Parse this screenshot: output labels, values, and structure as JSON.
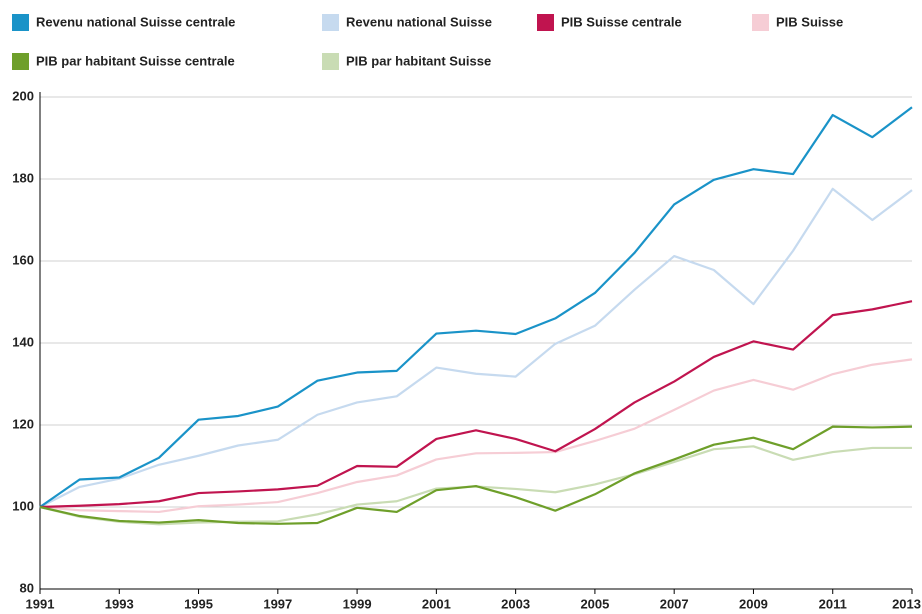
{
  "chart_data": {
    "type": "line",
    "x": [
      1991,
      1992,
      1993,
      1994,
      1995,
      1996,
      1997,
      1998,
      1999,
      2000,
      2001,
      2002,
      2003,
      2004,
      2005,
      2006,
      2007,
      2008,
      2009,
      2010,
      2011,
      2012,
      2013
    ],
    "xlim": [
      1991,
      2013
    ],
    "xticks": [
      1991,
      1993,
      1995,
      1997,
      1999,
      2001,
      2003,
      2005,
      2007,
      2009,
      2011,
      2013
    ],
    "ylim": [
      80,
      200
    ],
    "yticks": [
      80,
      100,
      120,
      140,
      160,
      180,
      200
    ],
    "grid": true,
    "legend": "top",
    "series": [
      {
        "name": "Revenu national Suisse centrale",
        "color": "#1a93c8",
        "values": [
          100,
          106.7,
          107.2,
          112,
          121.3,
          122.2,
          124.5,
          130.8,
          132.8,
          133.2,
          142.3,
          143,
          142.2,
          146,
          152.2,
          162,
          173.8,
          179.8,
          182.4,
          181.2,
          195.6,
          190.2,
          197.5
        ]
      },
      {
        "name": "Revenu national Suisse",
        "color": "#c6daef",
        "values": [
          100,
          104.9,
          106.9,
          110.3,
          112.5,
          115,
          116.4,
          122.5,
          125.5,
          127,
          134,
          132.5,
          131.8,
          139.8,
          144.2,
          153,
          161.2,
          157.8,
          149.5,
          162.5,
          177.6,
          170,
          177.3
        ]
      },
      {
        "name": "PIB Suisse centrale",
        "color": "#c0144f",
        "values": [
          100,
          100.3,
          100.7,
          101.4,
          103.4,
          103.8,
          104.3,
          105.2,
          110,
          109.8,
          116.6,
          118.7,
          116.6,
          113.6,
          119,
          125.5,
          130.6,
          136.6,
          140.4,
          138.4,
          146.8,
          148.2,
          150.2
        ]
      },
      {
        "name": "PIB Suisse",
        "color": "#f6cdd5",
        "values": [
          100,
          99.2,
          99,
          98.8,
          100.2,
          100.6,
          101.2,
          103.4,
          106.1,
          107.7,
          111.6,
          113.1,
          113.2,
          113.4,
          116.1,
          119.1,
          123.7,
          128.4,
          131,
          128.6,
          132.4,
          134.7,
          136
        ]
      },
      {
        "name": "PIB par habitant Suisse centrale",
        "color": "#6e9f2a",
        "values": [
          100,
          97.8,
          96.6,
          96.2,
          96.8,
          96.1,
          95.9,
          96.1,
          99.8,
          98.8,
          104.1,
          105.1,
          102.4,
          99.1,
          103.1,
          108.2,
          111.6,
          115.2,
          116.9,
          114.1,
          119.6,
          119.4,
          119.6
        ]
      },
      {
        "name": "PIB par habitant Suisse",
        "color": "#c9dcb4",
        "values": [
          100,
          97.6,
          96.4,
          95.8,
          96.2,
          96.4,
          96.5,
          98.2,
          100.6,
          101.4,
          104.5,
          105,
          104.4,
          103.6,
          105.5,
          108,
          111,
          114.1,
          114.8,
          111.5,
          113.4,
          114.4,
          114.4
        ]
      }
    ]
  }
}
